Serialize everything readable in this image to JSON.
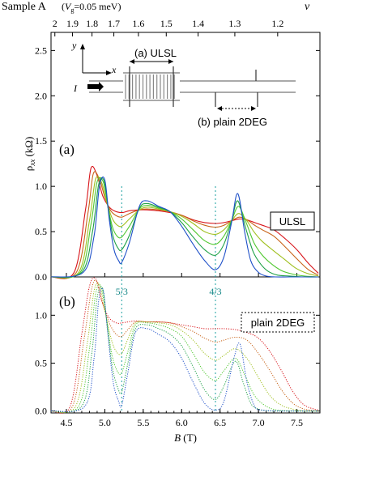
{
  "header": {
    "sample": "Sample A",
    "vg_open": "(",
    "vg_var": "V",
    "vg_sub": "g",
    "vg_val": "=0.05 meV)"
  },
  "chart_data": {
    "type": "line",
    "x_range": [
      4.3,
      7.8
    ],
    "x_ticks": [
      4.5,
      5.0,
      5.5,
      6.0,
      6.5,
      7.0,
      7.5
    ],
    "x_tick_labels": [
      "4.5",
      "5.0",
      "5.5",
      "6.0",
      "6.5",
      "7.0",
      "7.5"
    ],
    "xlabel_var": "B",
    "xlabel_unit": " (T)",
    "ylabel_main": "ρ",
    "ylabel_sub": "xx",
    "ylabel_unit": " (kΩ)",
    "nu_axis": {
      "label": "ν",
      "ticks": [
        2,
        1.9,
        1.8,
        1.7,
        1.6,
        1.5,
        1.4,
        1.3,
        1.2
      ],
      "tick_labels": [
        "2",
        "1.9",
        "1.8",
        "1.7",
        "1.6",
        "1.5",
        "1.4",
        "1.3",
        "1.2"
      ]
    },
    "fraction_markers": [
      {
        "label": "5/3",
        "B": 5.22
      },
      {
        "label": "4/3",
        "B": 6.44
      }
    ],
    "panels": [
      {
        "id": "a",
        "label": "(a)",
        "legend": "ULSL",
        "line_style": "solid",
        "ylim": [
          0,
          2.7
        ],
        "y_ticks": [
          0.0,
          0.5,
          1.0,
          1.5,
          2.0,
          2.5
        ],
        "y_tick_labels": [
          "0.0",
          "0.5",
          "1.0",
          "1.5",
          "2.0",
          "2.5"
        ],
        "inset": {
          "label_y": "y",
          "label_x": "x",
          "label_current": "I",
          "label_ulsl": "(a) ULSL",
          "label_2deg": "(b) plain 2DEG"
        },
        "series": [
          {
            "color": "#d8141a",
            "B": [
              4.3,
              4.6,
              4.75,
              4.82,
              4.9,
              4.97,
              5.05,
              5.12,
              5.22,
              5.32,
              5.45,
              5.55,
              5.7,
              5.85,
              6.0,
              6.15,
              6.3,
              6.44,
              6.55,
              6.65,
              6.75,
              6.85,
              6.95,
              7.05,
              7.2,
              7.35,
              7.5,
              7.65,
              7.78
            ],
            "rho": [
              0,
              0.05,
              0.75,
              1.2,
              1.12,
              0.9,
              0.78,
              0.73,
              0.71,
              0.73,
              0.74,
              0.74,
              0.73,
              0.71,
              0.68,
              0.63,
              0.6,
              0.59,
              0.6,
              0.62,
              0.64,
              0.63,
              0.6,
              0.57,
              0.52,
              0.42,
              0.3,
              0.15,
              0.04
            ]
          },
          {
            "color": "#c8641a",
            "B": [
              4.3,
              4.63,
              4.78,
              4.85,
              4.93,
              5.0,
              5.07,
              5.14,
              5.22,
              5.32,
              5.45,
              5.55,
              5.7,
              5.85,
              6.0,
              6.15,
              6.3,
              6.44,
              6.55,
              6.65,
              6.75,
              6.85,
              6.95,
              7.05,
              7.2,
              7.35,
              7.5,
              7.65,
              7.78
            ],
            "rho": [
              0,
              0.05,
              0.7,
              1.14,
              1.08,
              0.88,
              0.74,
              0.68,
              0.66,
              0.7,
              0.74,
              0.75,
              0.74,
              0.72,
              0.68,
              0.62,
              0.57,
              0.55,
              0.57,
              0.62,
              0.66,
              0.63,
              0.57,
              0.52,
              0.45,
              0.33,
              0.2,
              0.08,
              0.02
            ]
          },
          {
            "color": "#a0c020",
            "B": [
              4.3,
              4.66,
              4.8,
              4.88,
              4.96,
              5.02,
              5.09,
              5.15,
              5.22,
              5.32,
              5.45,
              5.55,
              5.7,
              5.85,
              6.0,
              6.15,
              6.3,
              6.44,
              6.55,
              6.65,
              6.74,
              6.84,
              6.94,
              7.04,
              7.18,
              7.33,
              7.48,
              7.63,
              7.78
            ],
            "rho": [
              0,
              0.05,
              0.62,
              1.08,
              1.04,
              0.84,
              0.66,
              0.58,
              0.56,
              0.64,
              0.74,
              0.77,
              0.75,
              0.72,
              0.67,
              0.59,
              0.5,
              0.47,
              0.52,
              0.62,
              0.7,
              0.63,
              0.5,
              0.4,
              0.3,
              0.2,
              0.1,
              0.04,
              0.01
            ]
          },
          {
            "color": "#50c830",
            "B": [
              4.3,
              4.68,
              4.82,
              4.9,
              4.98,
              5.04,
              5.1,
              5.16,
              5.22,
              5.32,
              5.45,
              5.55,
              5.7,
              5.85,
              6.0,
              6.15,
              6.3,
              6.44,
              6.55,
              6.65,
              6.74,
              6.84,
              6.94,
              7.04,
              7.16,
              7.3,
              7.45,
              7.6,
              7.78
            ],
            "rho": [
              0,
              0.05,
              0.58,
              1.05,
              1.05,
              0.78,
              0.55,
              0.45,
              0.44,
              0.56,
              0.75,
              0.79,
              0.76,
              0.72,
              0.64,
              0.52,
              0.4,
              0.36,
              0.45,
              0.62,
              0.78,
              0.6,
              0.38,
              0.25,
              0.15,
              0.07,
              0.03,
              0.01,
              0
            ]
          },
          {
            "color": "#1ea046",
            "B": [
              4.3,
              4.7,
              4.84,
              4.92,
              4.99,
              5.05,
              5.11,
              5.17,
              5.22,
              5.32,
              5.45,
              5.55,
              5.7,
              5.85,
              6.0,
              6.15,
              6.3,
              6.44,
              6.55,
              6.65,
              6.73,
              6.83,
              6.93,
              7.03,
              7.13,
              7.25,
              7.4,
              7.6,
              7.78
            ],
            "rho": [
              0,
              0.05,
              0.5,
              1.02,
              1.06,
              0.72,
              0.44,
              0.32,
              0.3,
              0.46,
              0.76,
              0.81,
              0.77,
              0.72,
              0.6,
              0.44,
              0.3,
              0.24,
              0.36,
              0.62,
              0.84,
              0.55,
              0.28,
              0.14,
              0.06,
              0.02,
              0.01,
              0,
              0
            ]
          },
          {
            "color": "#1e50c8",
            "B": [
              4.3,
              4.72,
              4.86,
              4.93,
              5.0,
              5.06,
              5.12,
              5.18,
              5.22,
              5.32,
              5.45,
              5.55,
              5.7,
              5.85,
              6.0,
              6.15,
              6.3,
              6.44,
              6.55,
              6.65,
              6.73,
              6.82,
              6.9,
              7.0,
              7.1,
              7.22,
              7.4,
              7.6,
              7.78
            ],
            "rho": [
              0,
              0.05,
              0.45,
              1.0,
              1.07,
              0.62,
              0.3,
              0.18,
              0.16,
              0.38,
              0.78,
              0.84,
              0.78,
              0.72,
              0.56,
              0.36,
              0.18,
              0.08,
              0.22,
              0.6,
              0.92,
              0.5,
              0.18,
              0.05,
              0.01,
              0,
              0,
              0,
              0
            ]
          }
        ]
      },
      {
        "id": "b",
        "label": "(b)",
        "legend": "plain 2DEG",
        "line_style": "dotted",
        "ylim": [
          -0.02,
          1.4
        ],
        "y_ticks": [
          0.0,
          0.5,
          1.0
        ],
        "y_tick_labels": [
          "0.0",
          "0.5",
          "1.0"
        ],
        "series": [
          {
            "color": "#d8141a",
            "B": [
              4.3,
              4.55,
              4.7,
              4.8,
              4.88,
              4.96,
              5.05,
              5.15,
              5.22,
              5.3,
              5.4,
              5.55,
              5.7,
              5.85,
              6.0,
              6.15,
              6.3,
              6.44,
              6.55,
              6.7,
              6.85,
              7.0,
              7.15,
              7.3,
              7.45,
              7.6,
              7.78
            ],
            "rho": [
              0,
              0.05,
              0.8,
              1.3,
              1.38,
              1.15,
              0.98,
              0.92,
              0.92,
              0.93,
              0.94,
              0.93,
              0.93,
              0.92,
              0.9,
              0.88,
              0.86,
              0.86,
              0.86,
              0.85,
              0.82,
              0.76,
              0.62,
              0.42,
              0.2,
              0.06,
              0.01
            ]
          },
          {
            "color": "#c8641a",
            "B": [
              4.3,
              4.58,
              4.73,
              4.83,
              4.9,
              4.98,
              5.07,
              5.15,
              5.22,
              5.3,
              5.4,
              5.55,
              5.7,
              5.85,
              6.0,
              6.15,
              6.3,
              6.44,
              6.55,
              6.7,
              6.85,
              7.0,
              7.15,
              7.3,
              7.45,
              7.6,
              7.78
            ],
            "rho": [
              0,
              0.05,
              0.75,
              1.28,
              1.35,
              1.1,
              0.9,
              0.8,
              0.78,
              0.85,
              0.93,
              0.93,
              0.93,
              0.92,
              0.88,
              0.83,
              0.76,
              0.72,
              0.74,
              0.77,
              0.74,
              0.6,
              0.42,
              0.22,
              0.08,
              0.02,
              0
            ]
          },
          {
            "color": "#a0c020",
            "B": [
              4.3,
              4.62,
              4.77,
              4.86,
              4.93,
              5.0,
              5.08,
              5.15,
              5.22,
              5.3,
              5.4,
              5.55,
              5.7,
              5.85,
              6.0,
              6.15,
              6.3,
              6.44,
              6.55,
              6.7,
              6.85,
              7.0,
              7.15,
              7.3,
              7.45,
              7.6,
              7.78
            ],
            "rho": [
              0,
              0.05,
              0.7,
              1.25,
              1.32,
              1.05,
              0.76,
              0.62,
              0.6,
              0.75,
              0.92,
              0.93,
              0.92,
              0.9,
              0.84,
              0.74,
              0.6,
              0.53,
              0.58,
              0.65,
              0.55,
              0.35,
              0.16,
              0.06,
              0.02,
              0,
              0
            ]
          },
          {
            "color": "#50c830",
            "B": [
              4.3,
              4.66,
              4.8,
              4.88,
              4.95,
              5.02,
              5.09,
              5.16,
              5.22,
              5.3,
              5.4,
              5.55,
              5.7,
              5.85,
              6.0,
              6.15,
              6.3,
              6.44,
              6.55,
              6.7,
              6.82,
              6.95,
              7.1,
              7.25,
              7.45,
              7.6,
              7.78
            ],
            "rho": [
              0,
              0.05,
              0.65,
              1.22,
              1.3,
              0.98,
              0.6,
              0.42,
              0.4,
              0.62,
              0.9,
              0.92,
              0.9,
              0.86,
              0.78,
              0.6,
              0.4,
              0.32,
              0.42,
              0.55,
              0.38,
              0.16,
              0.05,
              0.01,
              0,
              0,
              0
            ]
          },
          {
            "color": "#1ea046",
            "B": [
              4.3,
              4.7,
              4.83,
              4.9,
              4.97,
              5.03,
              5.1,
              5.17,
              5.22,
              5.3,
              5.4,
              5.55,
              5.7,
              5.85,
              6.0,
              6.15,
              6.3,
              6.44,
              6.55,
              6.7,
              6.8,
              6.9,
              7.0,
              7.15,
              7.35,
              7.6,
              7.78
            ],
            "rho": [
              0,
              0.05,
              0.6,
              1.18,
              1.28,
              0.9,
              0.45,
              0.24,
              0.2,
              0.5,
              0.86,
              0.9,
              0.86,
              0.8,
              0.68,
              0.46,
              0.22,
              0.12,
              0.26,
              0.52,
              0.3,
              0.08,
              0.02,
              0,
              0,
              0,
              0
            ]
          },
          {
            "color": "#1e50c8",
            "B": [
              4.3,
              4.74,
              4.86,
              4.92,
              4.98,
              5.04,
              5.11,
              5.18,
              5.22,
              5.3,
              5.4,
              5.55,
              5.7,
              5.85,
              6.0,
              6.15,
              6.3,
              6.44,
              6.55,
              6.68,
              6.76,
              6.85,
              6.95,
              7.05,
              7.3,
              7.55,
              7.78
            ],
            "rho": [
              0,
              0.05,
              0.55,
              1.15,
              1.26,
              0.8,
              0.3,
              0.1,
              0.06,
              0.4,
              0.82,
              0.86,
              0.8,
              0.72,
              0.55,
              0.3,
              0.08,
              0.01,
              0.1,
              0.55,
              0.7,
              0.3,
              0.05,
              0.01,
              0,
              0,
              0
            ]
          }
        ]
      }
    ]
  }
}
